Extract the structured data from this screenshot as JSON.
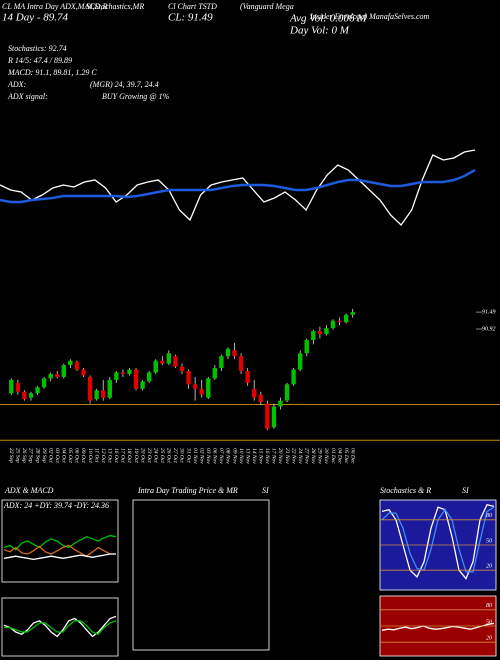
{
  "header": {
    "studies": "CL MA Intra Day ADX,MACD,B",
    "studies2": "SI,Stochastics,MR",
    "chart_name": "Cl Chart TSTD",
    "fund": "(Vanguard Mega",
    "fund2": "Insider Envelope) ManafaSelves.com",
    "day_line": "14 Day - 89.74",
    "close": "CL: 91.49",
    "avg_vol": "Avg Vol: 0.006  M",
    "day_vol": "Day Vol: 0  M",
    "stochastics": "Stochastics: 92.74",
    "r": "R 14/5: 47.4 / 89.89",
    "macd": "MACD: 91.1, 89.81, 1.29 C",
    "adx": "ADX:",
    "adx_values": "(MGR) 24, 39.7, 24.4",
    "adx_signal": "ADX  signal:",
    "signal": "BUY Growing @ 1%"
  },
  "chart_data": [
    {
      "type": "line",
      "ylim": [
        0,
        100
      ],
      "series": [
        {
          "color": "#ffffff",
          "values": [
            55,
            50,
            48,
            40,
            45,
            52,
            55,
            53,
            58,
            60,
            52,
            38,
            45,
            55,
            58,
            60,
            50,
            30,
            20,
            45,
            55,
            58,
            60,
            62,
            50,
            38,
            42,
            48,
            40,
            30,
            50,
            65,
            75,
            70,
            60,
            50,
            40,
            25,
            15,
            30,
            60,
            85,
            80,
            82,
            88,
            90
          ]
        },
        {
          "color": "#1e5adc",
          "values": [
            40,
            38,
            38,
            40,
            41,
            42,
            44,
            44,
            44,
            44,
            44,
            44,
            43,
            44,
            46,
            48,
            50,
            50,
            50,
            50,
            50,
            52,
            54,
            55,
            55,
            55,
            54,
            52,
            50,
            50,
            52,
            55,
            58,
            60,
            60,
            58,
            56,
            54,
            54,
            56,
            58,
            58,
            58,
            60,
            64,
            70
          ]
        }
      ]
    },
    {
      "type": "candlestick",
      "ylim": [
        87.0,
        91.9
      ],
      "yticks": [
        {
          "value": 91.49,
          "label": "91.49"
        },
        {
          "value": 90.92,
          "label": "90.92"
        }
      ],
      "levels": [
        88.37,
        87.16
      ],
      "level_color": "#b8860b",
      "up_color": "#00c000",
      "down_color": "#e00000",
      "categories": [
        "22 Sep",
        "25 Sep",
        "26 Sep",
        "27 Sep",
        "28 Sep",
        "29 Sep",
        "02 Oct",
        "03 Oct",
        "04 Oct",
        "05 Oct",
        "06 Oct",
        "09 Oct",
        "10 Oct",
        "11 Oct",
        "12 Oct",
        "13 Oct",
        "16 Oct",
        "17 Oct",
        "18 Oct",
        "19 Oct",
        "20 Oct",
        "23 Oct",
        "24 Oct",
        "25 Oct",
        "26 Oct",
        "27 Oct",
        "30 Oct",
        "31 Oct",
        "01 Nov",
        "02 Nov",
        "03 Nov",
        "06 Nov",
        "07 Nov",
        "08 Nov",
        "09 Nov",
        "10 Nov",
        "13 Nov",
        "14 Nov",
        "15 Nov",
        "16 Nov",
        "17 Nov",
        "20 Nov",
        "21 Nov",
        "22 Nov",
        "24 Nov",
        "27 Nov",
        "28 Nov",
        "29 Nov",
        "30 Nov",
        "01 Dec",
        "04 Dec",
        "05 Dec",
        "06 Dec"
      ],
      "open": [
        88.75,
        89.1,
        88.8,
        88.6,
        88.75,
        88.95,
        89.25,
        89.4,
        89.3,
        89.7,
        89.8,
        89.55,
        89.3,
        88.55,
        88.85,
        88.6,
        89.2,
        89.45,
        89.4,
        89.55,
        88.9,
        89.15,
        89.45,
        89.85,
        89.75,
        90.0,
        89.65,
        89.5,
        89.05,
        88.9,
        88.6,
        89.25,
        89.6,
        90.0,
        90.2,
        90.0,
        89.5,
        88.9,
        88.7,
        88.4,
        87.6,
        88.3,
        88.5,
        89.05,
        89.55,
        90.1,
        90.55,
        90.85,
        90.75,
        90.95,
        91.2,
        91.15,
        91.4
      ],
      "high": [
        89.25,
        89.2,
        88.85,
        88.8,
        89.0,
        89.3,
        89.45,
        89.5,
        89.75,
        89.9,
        89.85,
        89.6,
        89.35,
        88.9,
        89.2,
        89.3,
        89.5,
        89.55,
        89.6,
        89.6,
        89.2,
        89.5,
        89.9,
        90.0,
        90.2,
        90.05,
        89.75,
        89.55,
        89.3,
        89.2,
        89.3,
        89.7,
        90.05,
        90.3,
        90.45,
        90.1,
        89.6,
        89.2,
        88.8,
        88.5,
        88.4,
        88.6,
        89.1,
        89.6,
        90.2,
        90.6,
        90.9,
        91.0,
        91.05,
        91.25,
        91.3,
        91.45,
        91.6
      ],
      "low": [
        88.7,
        88.7,
        88.5,
        88.5,
        88.7,
        88.9,
        89.15,
        89.25,
        89.25,
        89.6,
        89.5,
        89.3,
        88.4,
        88.5,
        88.5,
        88.55,
        89.1,
        89.3,
        89.35,
        88.85,
        88.85,
        89.1,
        89.4,
        89.7,
        89.7,
        89.6,
        89.4,
        88.9,
        88.5,
        88.6,
        88.55,
        89.2,
        89.5,
        89.9,
        89.9,
        89.4,
        89.0,
        88.5,
        88.35,
        87.5,
        87.55,
        88.2,
        88.45,
        89.0,
        89.5,
        90.0,
        90.4,
        90.6,
        90.7,
        90.9,
        91.05,
        91.1,
        91.3
      ],
      "close": [
        89.2,
        88.8,
        88.55,
        88.75,
        88.95,
        89.25,
        89.4,
        89.3,
        89.7,
        89.85,
        89.55,
        89.35,
        88.5,
        88.85,
        88.6,
        89.2,
        89.45,
        89.4,
        89.55,
        88.9,
        89.15,
        89.45,
        89.85,
        89.75,
        90.1,
        89.65,
        89.5,
        89.05,
        88.9,
        88.7,
        89.25,
        89.6,
        90.0,
        90.25,
        90.0,
        89.5,
        89.1,
        88.6,
        88.45,
        87.55,
        88.3,
        88.5,
        89.05,
        89.55,
        90.1,
        90.55,
        90.85,
        90.75,
        90.95,
        91.2,
        91.15,
        91.4,
        91.49
      ]
    },
    {
      "type": "line",
      "title": "ADX  & MACD",
      "subtitle": "ADX: 24  +DY: 39.74  -DY: 24.36",
      "ylim": [
        0,
        60
      ],
      "series": [
        {
          "color": "#00c000",
          "values": [
            30,
            32,
            28,
            34,
            36,
            33,
            30,
            35,
            38,
            36,
            32,
            30,
            34,
            37,
            40,
            38,
            36,
            39,
            41,
            40
          ]
        },
        {
          "color": "#d2691e",
          "values": [
            28,
            26,
            30,
            25,
            24,
            27,
            31,
            26,
            24,
            27,
            30,
            32,
            28,
            25,
            22,
            26,
            30,
            27,
            24,
            24
          ]
        },
        {
          "color": "#ffffff",
          "values": [
            20,
            21,
            22,
            21,
            20,
            19,
            20,
            21,
            22,
            21,
            20,
            21,
            22,
            23,
            22,
            21,
            22,
            23,
            24,
            24
          ]
        }
      ]
    },
    {
      "type": "line",
      "ylim": [
        -1,
        1
      ],
      "series": [
        {
          "color": "#ffffff",
          "values": [
            0.1,
            0.0,
            -0.2,
            -0.3,
            -0.1,
            0.2,
            0.3,
            0.1,
            -0.2,
            -0.4,
            -0.1,
            0.3,
            0.4,
            0.2,
            -0.1,
            -0.4,
            -0.2,
            0.1,
            0.4,
            0.5
          ]
        },
        {
          "color": "#00c000",
          "values": [
            0.0,
            0.0,
            -0.1,
            -0.2,
            -0.2,
            0.0,
            0.2,
            0.2,
            0.0,
            -0.2,
            -0.2,
            0.1,
            0.3,
            0.3,
            0.1,
            -0.2,
            -0.3,
            0.0,
            0.2,
            0.3
          ]
        }
      ]
    },
    {
      "type": "box",
      "title": "Intra Day Trading Price  & MR",
      "title_end": "SI"
    },
    {
      "type": "stochastic",
      "title": "Stochastics & R",
      "title_end": "SI",
      "background": "#1a1a9a",
      "ylim": [
        0,
        100
      ],
      "yticks": [
        80,
        50,
        20
      ],
      "series": [
        {
          "color": "#ffffff",
          "values": [
            90,
            92,
            80,
            50,
            20,
            12,
            30,
            70,
            95,
            92,
            60,
            20,
            10,
            30,
            80,
            98,
            96
          ]
        },
        {
          "color": "#3c8cff",
          "values": [
            80,
            88,
            88,
            70,
            40,
            22,
            20,
            45,
            80,
            92,
            80,
            45,
            18,
            18,
            55,
            90,
            95
          ]
        }
      ]
    },
    {
      "type": "stochastic",
      "background": "#9a0000",
      "ylim": [
        0,
        100
      ],
      "yticks": [
        80,
        50,
        20
      ],
      "series": [
        {
          "color": "#ffffff",
          "values": [
            42,
            44,
            43,
            46,
            48,
            45,
            47,
            50,
            46,
            44,
            45,
            47,
            49,
            48,
            46,
            44,
            47,
            50,
            53,
            55
          ]
        }
      ]
    }
  ]
}
